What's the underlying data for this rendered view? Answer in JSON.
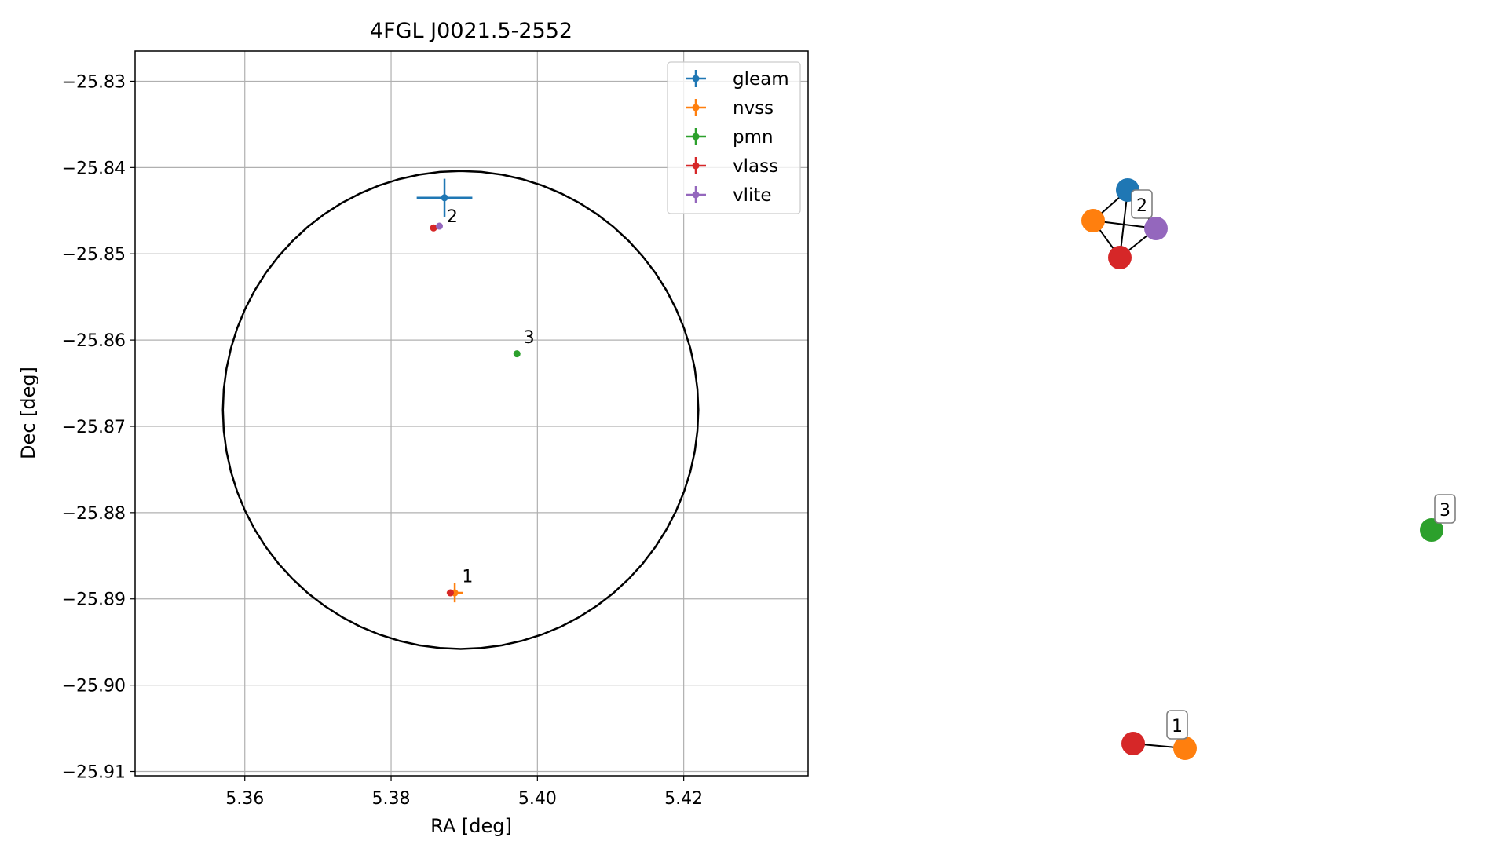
{
  "colors": {
    "gleam": "#1f77b4",
    "nvss": "#ff7f0e",
    "pmn": "#2ca02c",
    "vlass": "#d62728",
    "vlite": "#9467bd",
    "grid": "#b0b0b0",
    "ellipse": "#000000"
  },
  "chart_data": [
    {
      "type": "scatter",
      "title": "4FGL J0021.5-2552",
      "xlabel": "RA [deg]",
      "ylabel": "Dec [deg]",
      "xlim": [
        5.345,
        5.437
      ],
      "ylim": [
        -25.9105,
        -25.8265
      ],
      "grid": true,
      "legend_position": "top-right",
      "x_ticks": [
        5.36,
        5.38,
        5.4,
        5.42
      ],
      "x_tick_labels": [
        "5.36",
        "5.38",
        "5.40",
        "5.42"
      ],
      "y_ticks": [
        -25.83,
        -25.84,
        -25.85,
        -25.86,
        -25.87,
        -25.88,
        -25.89,
        -25.9,
        -25.91
      ],
      "y_tick_labels": [
        "−25.83",
        "−25.84",
        "−25.85",
        "−25.86",
        "−25.87",
        "−25.88",
        "−25.89",
        "−25.90",
        "−25.91"
      ],
      "ellipse": {
        "center": [
          5.3895,
          -25.8681
        ],
        "semi_axis_ra": 0.0325,
        "semi_axis_dec": 0.0277
      },
      "series": [
        {
          "name": "gleam",
          "points": [
            {
              "x": 5.3873,
              "y": -25.8435,
              "xerr": 0.0038,
              "yerr": 0.0022
            }
          ]
        },
        {
          "name": "nvss",
          "points": [
            {
              "x": 5.3887,
              "y": -25.8893,
              "xerr": 0.0011,
              "yerr": 0.0011
            }
          ]
        },
        {
          "name": "pmn",
          "points": [
            {
              "x": 5.3972,
              "y": -25.8616,
              "xerr": 0,
              "yerr": 0
            }
          ]
        },
        {
          "name": "vlass",
          "points": [
            {
              "x": 5.3858,
              "y": -25.847,
              "xerr": 0,
              "yerr": 0
            },
            {
              "x": 5.3881,
              "y": -25.8893,
              "xerr": 0,
              "yerr": 0
            }
          ]
        },
        {
          "name": "vlite",
          "points": [
            {
              "x": 5.3866,
              "y": -25.8468,
              "xerr": 0,
              "yerr": 0
            }
          ]
        }
      ],
      "annotations": [
        {
          "text": "2",
          "x": 5.3876,
          "y": -25.8459
        },
        {
          "text": "3",
          "x": 5.3981,
          "y": -25.8599
        },
        {
          "text": "1",
          "x": 5.3897,
          "y": -25.8876
        }
      ]
    },
    {
      "type": "network",
      "nodes": [
        {
          "id": "g2",
          "series": "gleam"
        },
        {
          "id": "n2",
          "series": "nvss"
        },
        {
          "id": "vl2",
          "series": "vlass"
        },
        {
          "id": "vt2",
          "series": "vlite"
        },
        {
          "id": "p3",
          "series": "pmn"
        },
        {
          "id": "vl1",
          "series": "vlass"
        },
        {
          "id": "n1",
          "series": "nvss"
        }
      ],
      "edges": [
        [
          "g2",
          "n2"
        ],
        [
          "g2",
          "vl2"
        ],
        [
          "g2",
          "vt2"
        ],
        [
          "n2",
          "vl2"
        ],
        [
          "n2",
          "vt2"
        ],
        [
          "vl2",
          "vt2"
        ],
        [
          "vl1",
          "n1"
        ]
      ],
      "labels": [
        "2",
        "3",
        "1"
      ]
    }
  ]
}
